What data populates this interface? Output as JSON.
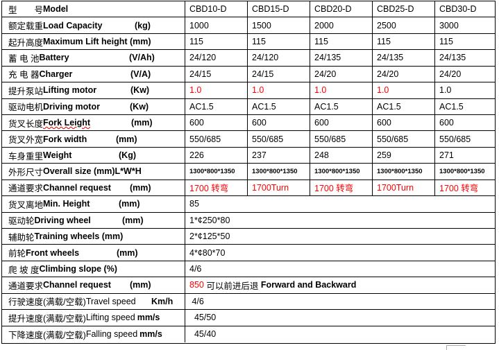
{
  "columns": [
    "CBD10-D",
    "CBD15-D",
    "CBD20-D",
    "CBD25-D",
    "CBD30-D"
  ],
  "rows": [
    {
      "cn": "型　　号",
      "en": "Model",
      "en_bold": true,
      "unit": "",
      "values": [
        "CBD10-D",
        "CBD15-D",
        "CBD20-D",
        "CBD25-D",
        "CBD30-D"
      ]
    },
    {
      "cn": "额定载重 ",
      "en": "Load Capacity",
      "en_bold": true,
      "unit": "(kg)",
      "values": [
        "1000",
        "1500",
        "2000",
        "2500",
        "3000"
      ]
    },
    {
      "cn": "起升高度",
      "en": "Maximum Lift height (mm)",
      "en_bold": true,
      "unit": "",
      "values": [
        "115",
        "115",
        "115",
        "115",
        "115"
      ]
    },
    {
      "cn": "蓄 电 池",
      "en": "Battery",
      "en_bold": true,
      "unit": "(V/Ah)",
      "values": [
        "24/120",
        "24/120",
        "24/135",
        "24/135",
        "24/135"
      ]
    },
    {
      "cn": "充  电  器",
      "en": "Charger",
      "en_bold": true,
      "unit": "(V/A)",
      "values": [
        "24/15",
        "24/15",
        "24/20",
        "24/20",
        "24/20"
      ]
    },
    {
      "cn": "提升泵站",
      "en": "Lifting motor",
      "en_bold": true,
      "unit": "(Kw)",
      "values": [
        "1.0",
        "1.0",
        "1.0",
        "1.0",
        "1.0"
      ],
      "red": [
        true,
        true,
        true,
        true,
        false
      ]
    },
    {
      "cn": "驱动电机",
      "en": "Driving motor",
      "en_bold": true,
      "unit": "(Kw)",
      "values": [
        "AC1.5",
        "AC1.5",
        "AC1.5",
        "AC1.5",
        "AC1.5"
      ]
    },
    {
      "cn": "货叉长度",
      "en": "Fork Leight",
      "en_bold": true,
      "unit": "(mm)",
      "values": [
        "600",
        "600",
        "600",
        "600",
        "600"
      ]
    },
    {
      "cn": "货叉外宽",
      "en": "Fork width",
      "en_bold": true,
      "unit": "(mm)",
      "values": [
        "550/685",
        "550/685",
        "550/685",
        "550/685",
        "550/685"
      ]
    },
    {
      "cn": "车身重里",
      "en": "Weight",
      "en_bold": true,
      "unit": "(Kg)",
      "values": [
        "226",
        "237",
        "248",
        "259",
        "271"
      ]
    },
    {
      "cn": "外形尺寸",
      "en": "Overall size (mm)L*W*H",
      "en_bold": true,
      "unit": "",
      "values": [
        "1300*800*1350",
        "1300*800*1350",
        "1300*800*1350",
        "1300*800*1350",
        "1300*800*1350"
      ],
      "small": true
    },
    {
      "cn": "通道要求 ",
      "en": "Channel request",
      "en_bold": true,
      "unit": "(mm)",
      "values": [
        "1700 转弯",
        "1700Turn",
        "1700 转弯",
        "1700Turn",
        "1700 转弯"
      ],
      "red": [
        true,
        true,
        true,
        true,
        true
      ]
    },
    {
      "cn": "货叉离地",
      "en": "Min. Height",
      "en_bold": true,
      "unit": "(mm)",
      "span": "85"
    },
    {
      "cn": "驱动轮 ",
      "en": "Driving wheel",
      "en_bold": true,
      "unit": "(mm)",
      "span": "1*¢250*80"
    },
    {
      "cn": "辅助轮",
      "en": "Training wheels (mm)",
      "en_bold": true,
      "unit": "",
      "span": "2*¢125*50"
    },
    {
      "cn": "前轮",
      "en": "Front wheels",
      "en_bold": true,
      "unit": "(mm)",
      "span": "4*¢80*70"
    },
    {
      "cn": "爬  坡  度 ",
      "en": "Climbing slope (%)",
      "en_bold": true,
      "unit": "",
      "span": "4/6"
    },
    {
      "cn": "通道要求 ",
      "en": "Channel request",
      "en_bold": true,
      "unit": "(mm)",
      "span_red": "850",
      "span": " 可以前进后退 ",
      "span_bold": "Forward and Backward"
    },
    {
      "cn": "行驶速度(满载/空载)",
      "en": "Travel speed",
      "en_bold": false,
      "unit": "Km/h",
      "span": " 4/6"
    },
    {
      "cn": "提升速度(满载/空载) ",
      "en": "Lifting speed",
      "en_bold": false,
      "unit": "mm/s",
      "span": "  45/50"
    },
    {
      "cn": "下降速度(满载/空载)",
      "en": "Falling speed",
      "en_bold": false,
      "unit": "mm/s",
      "span": "  45/40"
    }
  ],
  "colors": {
    "highlight": "#ff0000",
    "border": "#000000"
  }
}
